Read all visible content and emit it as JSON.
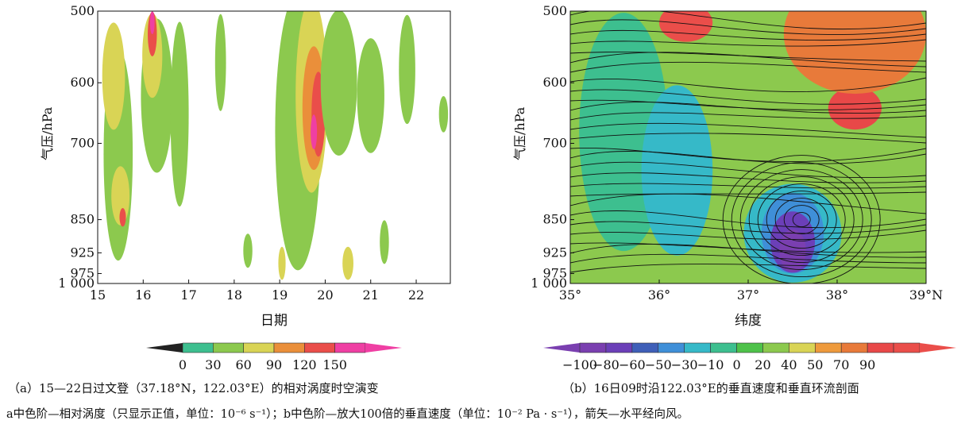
{
  "chart_data": [
    {
      "type": "heatmap",
      "panel": "a",
      "caption": "（a）15—22日过文登（37.18°N，122.03°E）的相对涡度时空演变",
      "xlabel": "日期",
      "ylabel": "气压/hPa",
      "x_ticks": [
        "15",
        "16",
        "17",
        "18",
        "19",
        "20",
        "21",
        "22"
      ],
      "y_ticks": [
        "500",
        "600",
        "700",
        "850",
        "925",
        "975",
        "1 000"
      ],
      "xlim": [
        15,
        22.75
      ],
      "ylim_hPa": [
        1000,
        500
      ],
      "y_scale": "log-pressure",
      "colorbar": {
        "labels": [
          "0",
          "30",
          "60",
          "90",
          "120",
          "150"
        ],
        "levels": [
          0,
          30,
          60,
          90,
          120,
          150
        ],
        "colors": [
          "#3dbf8f",
          "#8cc94e",
          "#d9d455",
          "#ea8f3a",
          "#ea4e4a",
          "#ef3fa3"
        ],
        "extend": "both"
      },
      "regions": [
        {
          "x": 15.45,
          "p": 720,
          "rx": 0.32,
          "ry": 190,
          "level": 1
        },
        {
          "x": 15.35,
          "p": 590,
          "rx": 0.25,
          "ry": 80,
          "level": 2
        },
        {
          "x": 15.5,
          "p": 800,
          "rx": 0.2,
          "ry": 60,
          "level": 2
        },
        {
          "x": 15.55,
          "p": 845,
          "rx": 0.07,
          "ry": 20,
          "level": 4
        },
        {
          "x": 16.3,
          "p": 620,
          "rx": 0.35,
          "ry": 120,
          "level": 1
        },
        {
          "x": 16.2,
          "p": 560,
          "rx": 0.22,
          "ry": 60,
          "level": 2
        },
        {
          "x": 16.2,
          "p": 530,
          "rx": 0.1,
          "ry": 30,
          "level": 4
        },
        {
          "x": 16.2,
          "p": 515,
          "rx": 0.05,
          "ry": 15,
          "level": 5
        },
        {
          "x": 16.8,
          "p": 650,
          "rx": 0.2,
          "ry": 150,
          "level": 1
        },
        {
          "x": 17.7,
          "p": 570,
          "rx": 0.12,
          "ry": 70,
          "level": 1
        },
        {
          "x": 18.3,
          "p": 920,
          "rx": 0.1,
          "ry": 40,
          "level": 1
        },
        {
          "x": 19.4,
          "p": 680,
          "rx": 0.5,
          "ry": 230,
          "level": 1
        },
        {
          "x": 19.7,
          "p": 620,
          "rx": 0.35,
          "ry": 150,
          "level": 2
        },
        {
          "x": 19.75,
          "p": 640,
          "rx": 0.25,
          "ry": 100,
          "level": 3
        },
        {
          "x": 19.85,
          "p": 650,
          "rx": 0.15,
          "ry": 70,
          "level": 4
        },
        {
          "x": 19.75,
          "p": 680,
          "rx": 0.07,
          "ry": 30,
          "level": 5
        },
        {
          "x": 19.05,
          "p": 950,
          "rx": 0.08,
          "ry": 40,
          "level": 2
        },
        {
          "x": 20.3,
          "p": 600,
          "rx": 0.4,
          "ry": 110,
          "level": 1
        },
        {
          "x": 20.5,
          "p": 950,
          "rx": 0.12,
          "ry": 40,
          "level": 2
        },
        {
          "x": 21.0,
          "p": 620,
          "rx": 0.3,
          "ry": 90,
          "level": 1
        },
        {
          "x": 21.3,
          "p": 900,
          "rx": 0.1,
          "ry": 50,
          "level": 1
        },
        {
          "x": 21.8,
          "p": 580,
          "rx": 0.18,
          "ry": 80,
          "level": 1
        },
        {
          "x": 22.6,
          "p": 650,
          "rx": 0.1,
          "ry": 30,
          "level": 1
        }
      ]
    },
    {
      "type": "heatmap",
      "panel": "b",
      "caption": "（b）16日09时沿122.03°E的垂直速度和垂直环流剖面",
      "xlabel": "纬度",
      "ylabel": "气压/hPa",
      "x_ticks": [
        "35°",
        "36°",
        "37°",
        "38°",
        "39°N"
      ],
      "y_ticks": [
        "500",
        "600",
        "700",
        "850",
        "925",
        "975",
        "1 000"
      ],
      "xlim": [
        35,
        39
      ],
      "ylim_hPa": [
        1000,
        500
      ],
      "y_scale": "log-pressure",
      "overlay": "streamlines (horizontal meridional wind / vertical velocity)",
      "colorbar": {
        "labels": [
          "−100",
          "−80",
          "−60",
          "−50",
          "−30",
          "−10",
          "0",
          "20",
          "40",
          "50",
          "70",
          "90"
        ],
        "levels": [
          -100,
          -80,
          -60,
          -50,
          -30,
          -10,
          0,
          20,
          40,
          50,
          70,
          90
        ],
        "colors": [
          "#7a3fb0",
          "#6b3fb8",
          "#3f5fb8",
          "#3f8fd8",
          "#36b9c8",
          "#3dbf8f",
          "#4ec24a",
          "#8cc94e",
          "#d9d455",
          "#ee9a3c",
          "#e87a3a",
          "#e84848",
          "#ea4e4a"
        ],
        "extend": "both"
      },
      "regions": [
        {
          "x": 35.6,
          "p": 680,
          "rx": 0.5,
          "ry": 200,
          "level": 5
        },
        {
          "x": 36.2,
          "p": 750,
          "rx": 0.4,
          "ry": 160,
          "level": 4
        },
        {
          "x": 37.5,
          "p": 880,
          "rx": 0.55,
          "ry": 110,
          "level": 4
        },
        {
          "x": 37.5,
          "p": 880,
          "rx": 0.35,
          "ry": 90,
          "level": 3
        },
        {
          "x": 37.5,
          "p": 900,
          "rx": 0.25,
          "ry": 70,
          "level": 1
        },
        {
          "x": 37.5,
          "p": 920,
          "rx": 0.15,
          "ry": 50,
          "level": 0
        },
        {
          "x": 36.3,
          "p": 515,
          "rx": 0.3,
          "ry": 25,
          "level": 12
        },
        {
          "x": 38.2,
          "p": 640,
          "rx": 0.3,
          "ry": 35,
          "level": 11
        },
        {
          "x": 38.2,
          "p": 530,
          "rx": 0.8,
          "ry": 80,
          "level": 10
        }
      ]
    }
  ],
  "caption_a": "（a）15—22日过文登（37.18°N，122.03°E）的相对涡度时空演变",
  "caption_b": "（b）16日09时沿122.03°E的垂直速度和垂直环流剖面",
  "note": "a中色阶—相对涡度（只显示正值，单位：10⁻⁶ s⁻¹）；b中色阶—放大100倍的垂直速度（单位：10⁻² Pa · s⁻¹），箭矢—水平经向风。"
}
